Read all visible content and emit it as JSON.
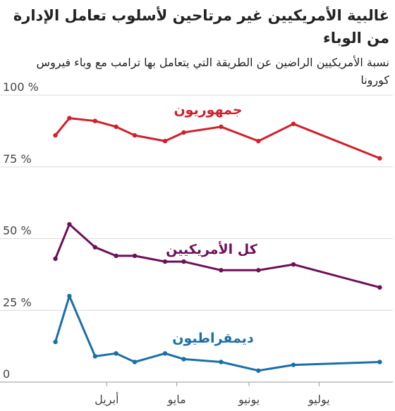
{
  "title": "غالبية الأمريكيين غير مرتاحين لأسلوب تعامل الإدارة من الوباء",
  "subtitle": "نسبة الأمريكيين الراضين عن الطريقة التي يتعامل بها ترامب مع وباء فيروس كورونا",
  "chart_data": {
    "type": "line",
    "title": "غالبية الأمريكيين غير مرتاحين لأسلوب تعامل الإدارة من الوباء",
    "subtitle": "نسبة الأمريكيين الراضين عن الطريقة التي يتعامل بها ترامب مع وباء فيروس كورونا",
    "xlabel": "",
    "ylabel": "",
    "x_type": "date",
    "xlim": [
      "2020-03-05",
      "2020-07-29"
    ],
    "x_ticks": [
      {
        "date": "2020-04-01",
        "label": "أبريل"
      },
      {
        "date": "2020-05-01",
        "label": "مايو"
      },
      {
        "date": "2020-06-01",
        "label": "يونيو"
      },
      {
        "date": "2020-07-01",
        "label": "يوليو"
      }
    ],
    "y_ticks": [
      {
        "value": 100,
        "label": "100 %"
      },
      {
        "value": 75,
        "label": "75 %"
      },
      {
        "value": 50,
        "label": "50 %"
      },
      {
        "value": 25,
        "label": "25 %"
      },
      {
        "value": 0,
        "label": "0"
      }
    ],
    "ylim": [
      0,
      100
    ],
    "grid": "horizontal",
    "legend": "inline labels",
    "series": [
      {
        "name": "جمهوريون",
        "color": "#d0202b",
        "x": [
          "2020-03-10",
          "2020-03-16",
          "2020-03-27",
          "2020-04-05",
          "2020-04-13",
          "2020-04-26",
          "2020-05-04",
          "2020-05-20",
          "2020-06-05",
          "2020-06-20",
          "2020-07-27"
        ],
        "values": [
          86,
          92,
          91,
          89,
          86,
          84,
          87,
          89,
          84,
          90,
          78
        ]
      },
      {
        "name": "كل الأمريكيين",
        "color": "#6e0f5a",
        "x": [
          "2020-03-10",
          "2020-03-16",
          "2020-03-27",
          "2020-04-05",
          "2020-04-13",
          "2020-04-26",
          "2020-05-04",
          "2020-05-20",
          "2020-06-05",
          "2020-06-20",
          "2020-07-27"
        ],
        "values": [
          43,
          55,
          47,
          44,
          44,
          42,
          42,
          39,
          39,
          41,
          33
        ]
      },
      {
        "name": "ديمقراطيون",
        "color": "#1a6fa8",
        "x": [
          "2020-03-10",
          "2020-03-16",
          "2020-03-27",
          "2020-04-05",
          "2020-04-13",
          "2020-04-26",
          "2020-05-04",
          "2020-05-20",
          "2020-06-05",
          "2020-06-20",
          "2020-07-27"
        ],
        "values": [
          14,
          30,
          9,
          10,
          7,
          10,
          8,
          7,
          4,
          6,
          7
        ]
      }
    ]
  }
}
